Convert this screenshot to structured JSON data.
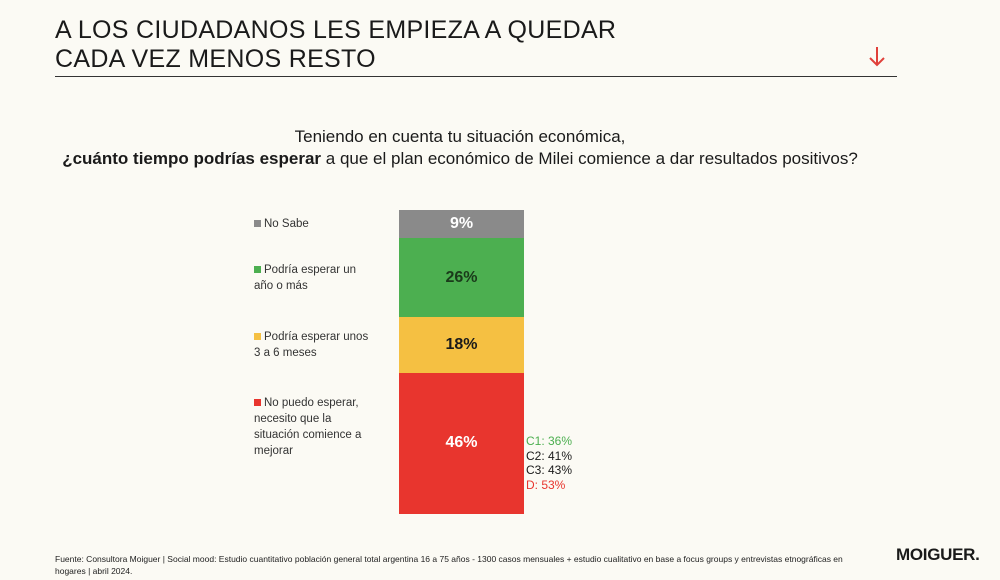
{
  "header": {
    "title_line1": "A LOS CIUDADANOS LES EMPIEZA A QUEDAR",
    "title_line2": "CADA VEZ MENOS RESTO",
    "accent": "#e0403a"
  },
  "question": {
    "line1": "Teniendo en cuenta tu situación económica,",
    "line2_bold": "¿cuánto tiempo podrías esperar",
    "line2_rest": " a que el plan económico de Milei comience a dar resultados positivos?"
  },
  "chart_data": {
    "type": "bar",
    "stacked": true,
    "categories": [
      "No Sabe",
      "Podría esperar un año o más",
      "Podría esperar unos 3 a 6 meses",
      "No puedo esperar, necesito que la situación comience a mejorar"
    ],
    "legend_lines": [
      [
        "No Sabe"
      ],
      [
        "Podría esperar un",
        "año o más"
      ],
      [
        "Podría esperar unos",
        "3 a 6 meses"
      ],
      [
        "No puedo esperar,",
        "necesito que la",
        "situación comience a",
        "mejorar"
      ]
    ],
    "values": [
      9,
      26,
      18,
      46
    ],
    "labels": [
      "9%",
      "26%",
      "18%",
      "46%"
    ],
    "colors": [
      "#8a8a8a",
      "#4caf50",
      "#f5c042",
      "#e8352e"
    ],
    "label_colors": [
      "#ffffff",
      "#1a3a1a",
      "#1a1a1a",
      "#ffffff"
    ],
    "unit": "%",
    "breakdown": {
      "category": "No puedo esperar, necesito que la situación comience a mejorar",
      "items": [
        {
          "label": "C1: 36%",
          "value": 36,
          "color": "#4caf50"
        },
        {
          "label": "C2: 41%",
          "value": 41,
          "color": "#1a1a1a"
        },
        {
          "label": "C3: 43%",
          "value": 43,
          "color": "#1a1a1a"
        },
        {
          "label": "D: 53%",
          "value": 53,
          "color": "#e8352e"
        }
      ]
    }
  },
  "footer": {
    "source": "Fuente: Consultora Moiguer | Social mood: Estudio cuantitativo población general total argentina 16 a 75 años - 1300 casos mensuales + estudio cualitativo en base a focus groups y entrevistas etnográficas en hogares |  abril 2024.",
    "logo": "MOIGUER."
  }
}
